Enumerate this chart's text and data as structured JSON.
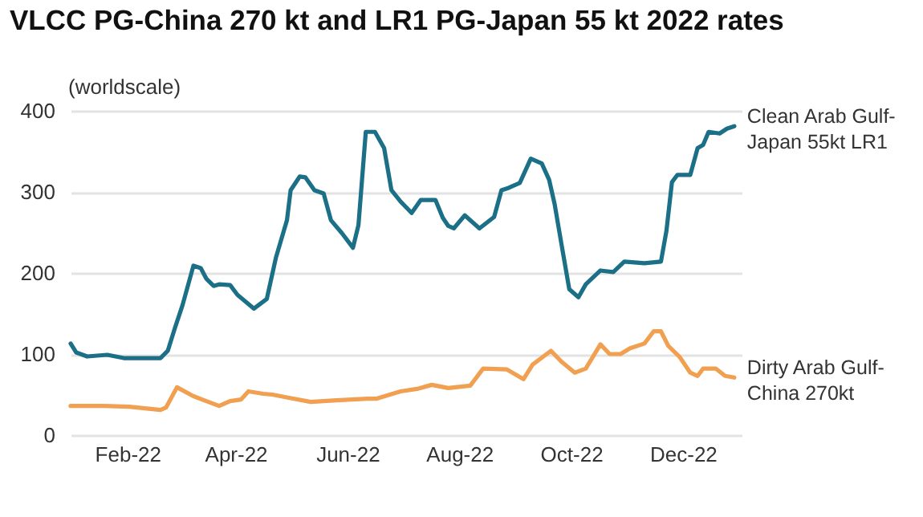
{
  "chart_data": {
    "type": "line",
    "title": "VLCC PG-China 270 kt and LR1 PG-Japan 55 kt 2022 rates",
    "ylabel": "(worldscale)",
    "ylim": [
      0,
      400
    ],
    "yticks": [
      0,
      100,
      200,
      300,
      400
    ],
    "grid": "y",
    "legend": false,
    "xlim": [
      "2022-01-01",
      "2023-01-02"
    ],
    "xticks": [
      {
        "value": "2022-02-01",
        "label": "Feb-22"
      },
      {
        "value": "2022-04-01",
        "label": "Apr-22"
      },
      {
        "value": "2022-06-01",
        "label": "Jun-22"
      },
      {
        "value": "2022-08-01",
        "label": "Aug-22"
      },
      {
        "value": "2022-10-01",
        "label": "Oct-22"
      },
      {
        "value": "2022-12-01",
        "label": "Dec-22"
      }
    ],
    "series": [
      {
        "name": "Clean Arab Gulf-Japan 55kt LR1",
        "color": "#1b6f86",
        "x": [
          "2022-01-01",
          "2022-01-04",
          "2022-01-10",
          "2022-01-21",
          "2022-01-30",
          "2022-02-17",
          "2022-02-19",
          "2022-02-23",
          "2022-02-27",
          "2022-03-03",
          "2022-03-09",
          "2022-03-13",
          "2022-03-16",
          "2022-03-20",
          "2022-03-23",
          "2022-03-29",
          "2022-04-02",
          "2022-04-11",
          "2022-04-18",
          "2022-04-23",
          "2022-04-29",
          "2022-05-01",
          "2022-05-06",
          "2022-05-09",
          "2022-05-14",
          "2022-05-19",
          "2022-05-23",
          "2022-05-29",
          "2022-06-04",
          "2022-06-07",
          "2022-06-11",
          "2022-06-16",
          "2022-06-21",
          "2022-06-25",
          "2022-06-30",
          "2022-07-06",
          "2022-07-11",
          "2022-07-19",
          "2022-07-23",
          "2022-07-26",
          "2022-07-29",
          "2022-08-04",
          "2022-08-12",
          "2022-08-20",
          "2022-08-24",
          "2022-08-28",
          "2022-09-03",
          "2022-09-09",
          "2022-09-15",
          "2022-09-19",
          "2022-09-22",
          "2022-09-26",
          "2022-09-30",
          "2022-10-05",
          "2022-10-09",
          "2022-10-17",
          "2022-10-24",
          "2022-10-30",
          "2022-11-10",
          "2022-11-19",
          "2022-11-22",
          "2022-11-25",
          "2022-11-28",
          "2022-12-05",
          "2022-12-09",
          "2022-12-12",
          "2022-12-15",
          "2022-12-21",
          "2022-12-25",
          "2022-12-29"
        ],
        "values": [
          113,
          102,
          97,
          99,
          95,
          95,
          95,
          104,
          133,
          160,
          209,
          206,
          193,
          184,
          186,
          185,
          173,
          156,
          168,
          219,
          265,
          302,
          319,
          318,
          302,
          298,
          265,
          249,
          231,
          259,
          374,
          374,
          354,
          302,
          288,
          274,
          290,
          290,
          268,
          258,
          255,
          271,
          255,
          269,
          302,
          305,
          311,
          341,
          335,
          315,
          285,
          232,
          180,
          170,
          186,
          203,
          201,
          214,
          212,
          214,
          252,
          312,
          321,
          321,
          354,
          358,
          374,
          372,
          378,
          381
        ]
      },
      {
        "name": "Dirty Arab Gulf-China 270kt",
        "color": "#f0a050",
        "x": [
          "2022-01-01",
          "2022-01-19",
          "2022-02-02",
          "2022-02-19",
          "2022-02-22",
          "2022-02-28",
          "2022-03-09",
          "2022-03-23",
          "2022-03-29",
          "2022-04-04",
          "2022-04-08",
          "2022-04-16",
          "2022-04-21",
          "2022-04-30",
          "2022-05-12",
          "2022-05-26",
          "2022-06-12",
          "2022-06-17",
          "2022-06-30",
          "2022-07-09",
          "2022-07-17",
          "2022-07-26",
          "2022-08-07",
          "2022-08-14",
          "2022-08-27",
          "2022-09-05",
          "2022-09-10",
          "2022-09-20",
          "2022-09-26",
          "2022-10-03",
          "2022-10-09",
          "2022-10-17",
          "2022-10-22",
          "2022-10-28",
          "2022-11-02",
          "2022-11-10",
          "2022-11-15",
          "2022-11-19",
          "2022-11-23",
          "2022-11-29",
          "2022-12-05",
          "2022-12-09",
          "2022-12-12",
          "2022-12-19",
          "2022-12-24",
          "2022-12-29"
        ],
        "values": [
          36,
          36,
          35,
          31,
          34,
          59,
          48,
          36,
          42,
          44,
          54,
          51,
          50,
          46,
          41,
          43,
          45,
          45,
          54,
          57,
          62,
          58,
          61,
          82,
          81,
          69,
          87,
          104,
          90,
          77,
          82,
          112,
          100,
          100,
          107,
          113,
          128,
          128,
          110,
          97,
          77,
          73,
          82,
          82,
          73,
          71
        ]
      }
    ]
  }
}
